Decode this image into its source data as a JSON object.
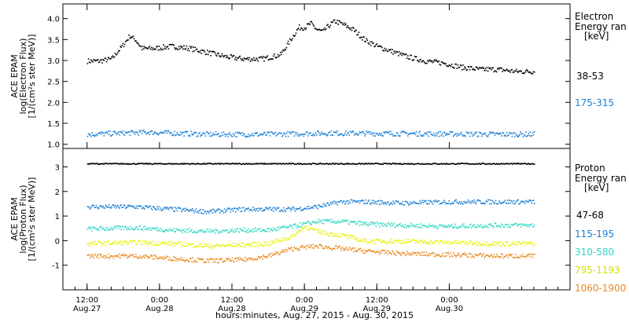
{
  "chart_data": [
    {
      "type": "scatter",
      "panel": "electron",
      "ylabel_lines": [
        "ACE EPAM",
        "log(Electron Flux)",
        "[1/(cm²s ster MeV)]"
      ],
      "ylim": [
        0.9,
        4.35
      ],
      "yticks": [
        "1.0",
        "1.5",
        "2.0",
        "2.5",
        "3.0",
        "3.5",
        "4.0"
      ],
      "ytick_values": [
        1.0,
        1.5,
        2.0,
        2.5,
        3.0,
        3.5,
        4.0
      ],
      "legend_title": [
        "Electron",
        "Energy ran",
        "[keV]"
      ],
      "series": [
        {
          "name": "38-53",
          "color": "#000000",
          "x": [
            0,
            2,
            4,
            6,
            7,
            8,
            9,
            11,
            14,
            17,
            20,
            23,
            26,
            29,
            32,
            35,
            36,
            37,
            38,
            39,
            40,
            41,
            42,
            44,
            46,
            48,
            50,
            53,
            56,
            59,
            62,
            65,
            68,
            71,
            74
          ],
          "y": [
            3.0,
            3.0,
            3.05,
            3.4,
            3.6,
            3.5,
            3.3,
            3.3,
            3.35,
            3.3,
            3.2,
            3.1,
            3.05,
            3.05,
            3.15,
            3.8,
            3.8,
            3.9,
            3.75,
            3.7,
            3.85,
            3.95,
            3.9,
            3.75,
            3.5,
            3.35,
            3.25,
            3.1,
            3.0,
            2.95,
            2.85,
            2.8,
            2.8,
            2.75,
            2.75
          ]
        },
        {
          "name": "175-315",
          "color": "#1a7fd4",
          "x": [
            0,
            10,
            20,
            30,
            40,
            50,
            60,
            70,
            74
          ],
          "y": [
            1.25,
            1.3,
            1.25,
            1.25,
            1.28,
            1.27,
            1.26,
            1.25,
            1.25
          ]
        }
      ]
    },
    {
      "type": "scatter",
      "panel": "proton",
      "ylabel_lines": [
        "ACE EPAM",
        "log(Proton Flux)",
        "[1/(cm²s ster MeV)]"
      ],
      "ylim": [
        -2.0,
        3.75
      ],
      "yticks": [
        "-1",
        "0",
        "1",
        "2",
        "3"
      ],
      "ytick_values": [
        -1,
        0,
        1,
        2,
        3
      ],
      "legend_title": [
        "Proton",
        "Energy ran",
        "[keV]"
      ],
      "series": [
        {
          "name": "47-68",
          "color": "#000000",
          "x": [
            0,
            20,
            40,
            60,
            74
          ],
          "y": [
            3.15,
            3.15,
            3.15,
            3.15,
            3.15
          ]
        },
        {
          "name": "115-195",
          "color": "#1a7fd4",
          "x": [
            0,
            8,
            14,
            20,
            26,
            30,
            34,
            38,
            42,
            46,
            52,
            60,
            68,
            74
          ],
          "y": [
            1.4,
            1.4,
            1.3,
            1.2,
            1.3,
            1.3,
            1.3,
            1.4,
            1.6,
            1.6,
            1.55,
            1.6,
            1.6,
            1.6
          ]
        },
        {
          "name": "310-580",
          "color": "#2fd7c2",
          "x": [
            0,
            8,
            14,
            20,
            26,
            30,
            34,
            38,
            42,
            46,
            52,
            60,
            68,
            74
          ],
          "y": [
            0.5,
            0.55,
            0.45,
            0.4,
            0.45,
            0.45,
            0.6,
            0.8,
            0.8,
            0.7,
            0.65,
            0.6,
            0.65,
            0.65
          ]
        },
        {
          "name": "795-1193",
          "color": "#e6f200",
          "x": [
            0,
            8,
            14,
            20,
            26,
            30,
            34,
            36,
            38,
            40,
            42,
            46,
            52,
            60,
            68,
            74
          ],
          "y": [
            -0.1,
            -0.05,
            -0.1,
            -0.2,
            -0.15,
            -0.1,
            0.2,
            0.6,
            0.4,
            0.3,
            0.25,
            0.0,
            0.0,
            -0.05,
            -0.1,
            -0.1
          ]
        },
        {
          "name": "1060-1900",
          "color": "#e8891c",
          "x": [
            0,
            8,
            14,
            20,
            26,
            30,
            34,
            38,
            42,
            46,
            52,
            60,
            68,
            74
          ],
          "y": [
            -0.6,
            -0.6,
            -0.7,
            -0.8,
            -0.75,
            -0.6,
            -0.3,
            -0.2,
            -0.3,
            -0.4,
            -0.5,
            -0.55,
            -0.6,
            -0.6
          ]
        }
      ]
    }
  ],
  "x_axis": {
    "title": "hours:minutes, Aug. 27, 2015 - Aug. 30, 2015",
    "hours_range": [
      -4,
      80
    ],
    "ticks": [
      {
        "hour": 0,
        "time": "12:00",
        "date": "Aug.27"
      },
      {
        "hour": 12,
        "time": "0:00",
        "date": "Aug.28"
      },
      {
        "hour": 24,
        "time": "12:00",
        "date": "Aug.28"
      },
      {
        "hour": 36,
        "time": "0:00",
        "date": "Aug.29"
      },
      {
        "hour": 48,
        "time": "12:00",
        "date": "Aug.29"
      },
      {
        "hour": 60,
        "time": "0:00",
        "date": "Aug.30"
      }
    ]
  }
}
